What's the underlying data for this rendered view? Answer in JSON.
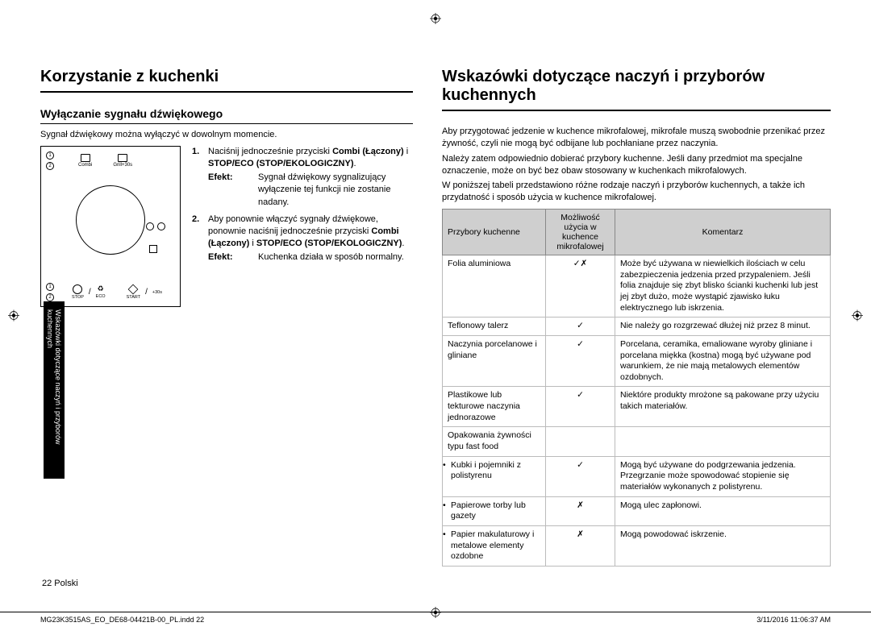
{
  "left": {
    "title": "Korzystanie z kuchenki",
    "section": "Wyłączanie sygnału dźwiękowego",
    "intro": "Sygnał dźwiękowy można wyłączyć w dowolnym momencie.",
    "steps": [
      {
        "n": "1.",
        "text_a": "Naciśnij jednocześnie przyciski ",
        "bold_a": "Combi (Łączony)",
        "text_b": " i ",
        "bold_b": "STOP/ECO (STOP/EKOLOGICZNY)",
        "text_c": ".",
        "efekt_label": "Efekt:",
        "efekt": "Sygnał dźwiękowy sygnalizujący wyłączenie tej funkcji nie zostanie nadany."
      },
      {
        "n": "2.",
        "text_a": "Aby ponownie włączyć sygnały dźwiękowe, ponownie naciśnij jednocześnie przyciski ",
        "bold_a": "Combi (Łączony)",
        "text_b": " i ",
        "bold_b": "STOP/ECO (STOP/EKOLOGICZNY)",
        "text_c": ".",
        "efekt_label": "Efekt:",
        "efekt": "Kuchenka działa w sposób normalny."
      }
    ],
    "diagram": {
      "num1": "1",
      "num2": "2",
      "combi": "Combi",
      "grill": "Grill+30s",
      "stop": "STOP",
      "eco": "ECO",
      "start": "START",
      "plus30": "+30s"
    },
    "tab": "Wskazówki dotyczące naczyń i przyborów kuchennych"
  },
  "right": {
    "title": "Wskazówki dotyczące naczyń i przyborów kuchennych",
    "paras": [
      "Aby przygotować jedzenie w kuchence mikrofalowej, mikrofale muszą swobodnie przenikać przez żywność, czyli nie mogą być odbijane lub pochłaniane przez naczynia.",
      "Należy zatem odpowiednio dobierać przybory kuchenne. Jeśli dany przedmiot ma specjalne oznaczenie, może on być bez obaw stosowany w kuchenkach mikrofalowych.",
      "W poniższej tabeli przedstawiono różne rodzaje naczyń i przyborów kuchennych, a także ich przydatność i sposób użycia w kuchence mikrofalowej."
    ],
    "headers": [
      "Przybory kuchenne",
      "Możliwość użycia w kuchence mikrofalowej",
      "Komentarz"
    ],
    "rows": [
      {
        "item": "Folia aluminiowa",
        "safe": "✓✗",
        "comment": "Może być używana w niewielkich ilościach w celu zabezpieczenia jedzenia przed przypaleniem. Jeśli folia znajduje się zbyt blisko ścianki kuchenki lub jest jej zbyt dużo, może wystąpić zjawisko łuku elektrycznego lub iskrzenia.",
        "cls": ""
      },
      {
        "item": "Teflonowy talerz",
        "safe": "✓",
        "comment": "Nie należy go rozgrzewać dłużej niż przez 8 minut.",
        "cls": ""
      },
      {
        "item": "Naczynia porcelanowe i gliniane",
        "safe": "✓",
        "comment": "Porcelana, ceramika, emaliowane wyroby gliniane i porcelana miękka (kostna) mogą być używane pod warunkiem, że nie mają metalowych elementów ozdobnych.",
        "cls": ""
      },
      {
        "item": "Plastikowe lub tekturowe naczynia jednorazowe",
        "safe": "✓",
        "comment": "Niektóre produkty mrożone są pakowane przy użyciu takich materiałów.",
        "cls": ""
      },
      {
        "item": "Opakowania żywności typu fast food",
        "safe": "",
        "comment": "",
        "cls": "group-start"
      },
      {
        "item": "Kubki i pojemniki z polistyrenu",
        "safe": "✓",
        "comment": "Mogą być używane do podgrzewania jedzenia. Przegrzanie może spowodować stopienie się materiałów wykonanych z polistyrenu.",
        "cls": "sub noborder-top"
      },
      {
        "item": "Papierowe torby lub gazety",
        "safe": "✗",
        "comment": "Mogą ulec zapłonowi.",
        "cls": "sub noborder-top"
      },
      {
        "item": "Papier makulaturowy i metalowe elementy ozdobne",
        "safe": "✗",
        "comment": "Mogą powodować iskrzenie.",
        "cls": "sub noborder-top"
      }
    ]
  },
  "footer": {
    "page": "22  Polski",
    "file": "MG23K3515AS_EO_DE68-04421B-00_PL.indd   22",
    "date": "3/11/2016   11:06:37 AM"
  }
}
